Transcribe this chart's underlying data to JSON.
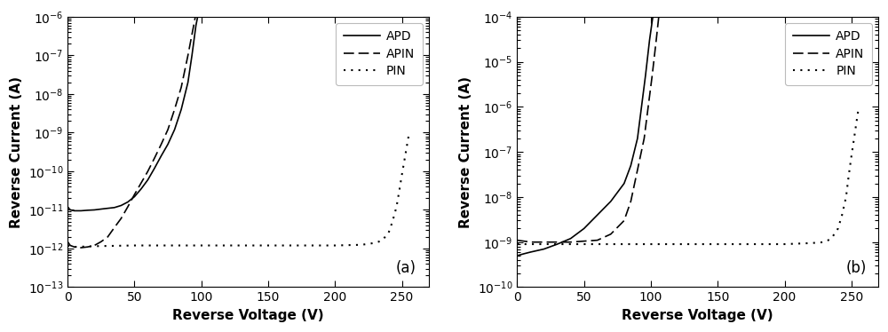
{
  "fig_width": 10.0,
  "fig_height": 3.74,
  "background_color": "#ffffff",
  "subplot_a": {
    "label": "(a)",
    "xlabel": "Reverse Voltage (V)",
    "ylabel": "Reverse Current (A)",
    "xlim": [
      0,
      270
    ],
    "ylim_log": [
      -13,
      -6
    ],
    "xticks": [
      0,
      50,
      100,
      150,
      200,
      250
    ],
    "APD": {
      "x": [
        0,
        2,
        5,
        10,
        15,
        20,
        25,
        30,
        35,
        40,
        45,
        50,
        55,
        60,
        65,
        70,
        75,
        80,
        85,
        90,
        93,
        96,
        99,
        101,
        103,
        105
      ],
      "y": [
        1.2e-11,
        1e-11,
        9.5e-12,
        9.5e-12,
        9.8e-12,
        1e-11,
        1.05e-11,
        1.1e-11,
        1.15e-11,
        1.3e-11,
        1.6e-11,
        2.2e-11,
        3.5e-11,
        6e-11,
        1.2e-10,
        2.5e-10,
        5e-10,
        1.2e-09,
        4e-09,
        2e-08,
        1e-07,
        6e-07,
        2e-06,
        5e-06,
        8e-06,
        1e-05
      ]
    },
    "APIN": {
      "x": [
        0,
        2,
        5,
        10,
        15,
        20,
        25,
        30,
        35,
        40,
        45,
        50,
        55,
        60,
        65,
        70,
        75,
        80,
        85,
        90,
        95,
        98,
        101,
        104,
        107
      ],
      "y": [
        1.5e-12,
        1.2e-12,
        1.1e-12,
        1.05e-12,
        1.1e-12,
        1.2e-12,
        1.5e-12,
        2e-12,
        3.5e-12,
        6e-12,
        1.2e-11,
        2.5e-11,
        5e-11,
        1e-10,
        2.2e-10,
        5e-10,
        1.2e-09,
        4e-09,
        1.5e-08,
        1e-07,
        8e-07,
        3e-06,
        8e-06,
        2e-05,
        5e-05
      ]
    },
    "PIN": {
      "x": [
        0,
        5,
        20,
        50,
        100,
        150,
        200,
        220,
        230,
        235,
        240,
        243,
        246,
        248,
        250,
        252,
        255
      ],
      "y": [
        1.2e-12,
        1.1e-12,
        1.15e-12,
        1.2e-12,
        1.2e-12,
        1.2e-12,
        1.2e-12,
        1.25e-12,
        1.4e-12,
        1.6e-12,
        2.5e-12,
        5e-12,
        1.2e-11,
        3e-11,
        8e-11,
        2e-10,
        8e-10
      ]
    }
  },
  "subplot_b": {
    "label": "(b)",
    "xlabel": "Reverse Voltage (V)",
    "ylabel": "Reverse Current (A)",
    "xlim": [
      0,
      270
    ],
    "ylim_log": [
      -10,
      -4
    ],
    "xticks": [
      0,
      50,
      100,
      150,
      200,
      250
    ],
    "APD": {
      "x": [
        0,
        5,
        10,
        20,
        30,
        40,
        50,
        60,
        70,
        80,
        85,
        90,
        93,
        96,
        99,
        101,
        103
      ],
      "y": [
        5e-10,
        5.5e-10,
        6e-10,
        7e-10,
        9e-10,
        1.2e-09,
        2e-09,
        4e-09,
        8e-09,
        2e-08,
        5e-08,
        2e-07,
        1e-06,
        5e-06,
        3e-05,
        8e-05,
        0.0002
      ]
    },
    "APIN": {
      "x": [
        0,
        5,
        10,
        20,
        30,
        40,
        50,
        60,
        70,
        80,
        85,
        90,
        95,
        98,
        101,
        104,
        107
      ],
      "y": [
        1.1e-09,
        1.05e-09,
        1e-09,
        1e-09,
        1e-09,
        1e-09,
        1.05e-09,
        1.1e-09,
        1.5e-09,
        3e-09,
        8e-09,
        4e-08,
        2e-07,
        1e-06,
        5e-06,
        3e-05,
        0.0002
      ]
    },
    "PIN": {
      "x": [
        0,
        5,
        20,
        50,
        100,
        150,
        200,
        220,
        230,
        235,
        240,
        243,
        246,
        248,
        250,
        252,
        255
      ],
      "y": [
        9e-10,
        9e-10,
        9e-10,
        9e-10,
        9e-10,
        9e-10,
        9e-10,
        9.5e-10,
        1e-09,
        1.2e-09,
        2e-09,
        4e-09,
        1e-08,
        3e-08,
        8e-08,
        2e-07,
        8e-07
      ]
    }
  }
}
